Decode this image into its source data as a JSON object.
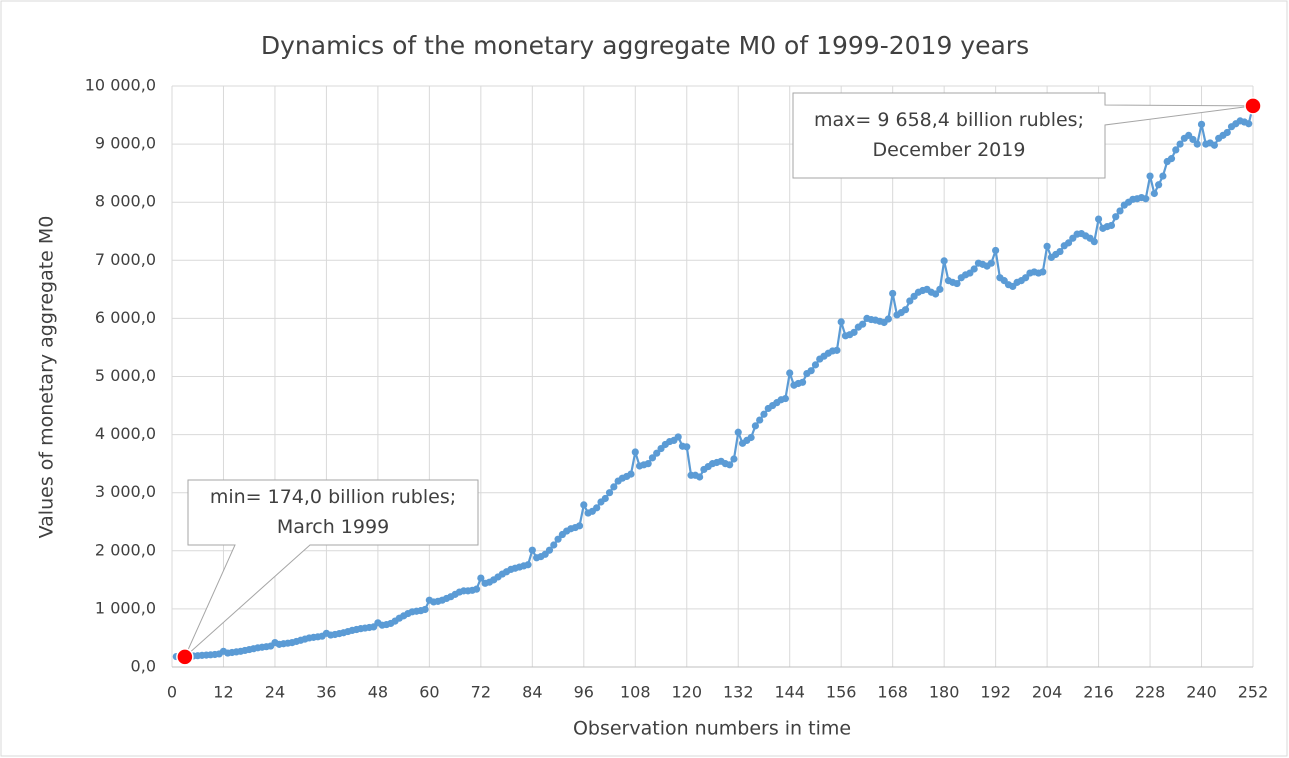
{
  "chart_data": {
    "type": "line",
    "title": "Dynamics of the monetary aggregate M0 of 1999-2019 years",
    "xlabel": "Observation numbers in time",
    "ylabel": "Values of monetary aggregate M0",
    "x": [
      1,
      2,
      3,
      4,
      5,
      6,
      7,
      8,
      9,
      10,
      11,
      12,
      13,
      14,
      15,
      16,
      17,
      18,
      19,
      20,
      21,
      22,
      23,
      24,
      25,
      26,
      27,
      28,
      29,
      30,
      31,
      32,
      33,
      34,
      35,
      36,
      37,
      38,
      39,
      40,
      41,
      42,
      43,
      44,
      45,
      46,
      47,
      48,
      49,
      50,
      51,
      52,
      53,
      54,
      55,
      56,
      57,
      58,
      59,
      60,
      61,
      62,
      63,
      64,
      65,
      66,
      67,
      68,
      69,
      70,
      71,
      72,
      73,
      74,
      75,
      76,
      77,
      78,
      79,
      80,
      81,
      82,
      83,
      84,
      85,
      86,
      87,
      88,
      89,
      90,
      91,
      92,
      93,
      94,
      95,
      96,
      97,
      98,
      99,
      100,
      101,
      102,
      103,
      104,
      105,
      106,
      107,
      108,
      109,
      110,
      111,
      112,
      113,
      114,
      115,
      116,
      117,
      118,
      119,
      120,
      121,
      122,
      123,
      124,
      125,
      126,
      127,
      128,
      129,
      130,
      131,
      132,
      133,
      134,
      135,
      136,
      137,
      138,
      139,
      140,
      141,
      142,
      143,
      144,
      145,
      146,
      147,
      148,
      149,
      150,
      151,
      152,
      153,
      154,
      155,
      156,
      157,
      158,
      159,
      160,
      161,
      162,
      163,
      164,
      165,
      166,
      167,
      168,
      169,
      170,
      171,
      172,
      173,
      174,
      175,
      176,
      177,
      178,
      179,
      180,
      181,
      182,
      183,
      184,
      185,
      186,
      187,
      188,
      189,
      190,
      191,
      192,
      193,
      194,
      195,
      196,
      197,
      198,
      199,
      200,
      201,
      202,
      203,
      204,
      205,
      206,
      207,
      208,
      209,
      210,
      211,
      212,
      213,
      214,
      215,
      216,
      217,
      218,
      219,
      220,
      221,
      222,
      223,
      224,
      225,
      226,
      227,
      228,
      229,
      230,
      231,
      232,
      233,
      234,
      235,
      236,
      237,
      238,
      239,
      240,
      241,
      242,
      243,
      244,
      245,
      246,
      247,
      248,
      249,
      250,
      251,
      252
    ],
    "series": [
      {
        "name": "M0",
        "color": "#5b9bd5",
        "values": [
          180,
          178,
          174,
          185,
          190,
          195,
          200,
          205,
          210,
          215,
          225,
          270,
          240,
          250,
          260,
          270,
          285,
          300,
          315,
          330,
          340,
          350,
          360,
          420,
          390,
          400,
          410,
          420,
          440,
          460,
          480,
          500,
          510,
          520,
          530,
          580,
          550,
          560,
          575,
          590,
          610,
          630,
          645,
          660,
          670,
          680,
          690,
          760,
          720,
          730,
          750,
          790,
          840,
          880,
          920,
          950,
          960,
          970,
          990,
          1150,
          1120,
          1130,
          1150,
          1180,
          1210,
          1250,
          1290,
          1310,
          1310,
          1320,
          1340,
          1530,
          1440,
          1460,
          1500,
          1550,
          1600,
          1640,
          1680,
          1700,
          1720,
          1740,
          1760,
          2010,
          1880,
          1900,
          1940,
          2010,
          2100,
          2200,
          2280,
          2340,
          2380,
          2400,
          2430,
          2790,
          2650,
          2680,
          2740,
          2840,
          2900,
          3000,
          3100,
          3200,
          3250,
          3280,
          3320,
          3700,
          3460,
          3480,
          3500,
          3600,
          3680,
          3760,
          3830,
          3880,
          3900,
          3960,
          3800,
          3790,
          3300,
          3300,
          3270,
          3400,
          3450,
          3500,
          3520,
          3540,
          3500,
          3480,
          3580,
          4040,
          3850,
          3900,
          3950,
          4150,
          4250,
          4350,
          4450,
          4500,
          4550,
          4600,
          4620,
          5060,
          4850,
          4880,
          4900,
          5050,
          5100,
          5200,
          5300,
          5350,
          5400,
          5440,
          5450,
          5940,
          5700,
          5720,
          5760,
          5850,
          5900,
          6000,
          5980,
          5970,
          5950,
          5930,
          5990,
          6430,
          6060,
          6100,
          6150,
          6300,
          6380,
          6450,
          6480,
          6500,
          6450,
          6420,
          6500,
          6990,
          6650,
          6620,
          6600,
          6700,
          6750,
          6780,
          6850,
          6950,
          6930,
          6900,
          6950,
          7170,
          6700,
          6650,
          6580,
          6550,
          6620,
          6650,
          6700,
          6780,
          6800,
          6780,
          6800,
          7240,
          7050,
          7100,
          7150,
          7250,
          7300,
          7380,
          7450,
          7460,
          7420,
          7380,
          7320,
          7710,
          7550,
          7580,
          7600,
          7750,
          7850,
          7950,
          8000,
          8050,
          8060,
          8080,
          8060,
          8450,
          8150,
          8300,
          8450,
          8700,
          8750,
          8900,
          9000,
          9100,
          9150,
          9080,
          9000,
          9340,
          9000,
          9020,
          8980,
          9100,
          9150,
          9200,
          9300,
          9350,
          9400,
          9380,
          9350,
          9658.4
        ]
      }
    ],
    "highlight_color": "#ff0000",
    "annotations": [
      {
        "lines": [
          "min=  174,0 billion rubles;",
          "March 1999"
        ]
      },
      {
        "lines": [
          "max= 9 658,4 billion rubles;",
          "December  2019"
        ]
      }
    ],
    "xlim": [
      0,
      252
    ],
    "xticks": [
      0,
      12,
      24,
      36,
      48,
      60,
      72,
      84,
      96,
      108,
      120,
      132,
      144,
      156,
      168,
      180,
      192,
      204,
      216,
      228,
      240,
      252
    ],
    "ylim": [
      0,
      10000
    ],
    "yticks": [
      {
        "value": 0,
        "label": "0,0"
      },
      {
        "value": 1000,
        "label": "1 000,0"
      },
      {
        "value": 2000,
        "label": "2 000,0"
      },
      {
        "value": 3000,
        "label": "3 000,0"
      },
      {
        "value": 4000,
        "label": "4 000,0"
      },
      {
        "value": 5000,
        "label": "5 000,0"
      },
      {
        "value": 6000,
        "label": "6 000,0"
      },
      {
        "value": 7000,
        "label": "7 000,0"
      },
      {
        "value": 8000,
        "label": "8 000,0"
      },
      {
        "value": 9000,
        "label": "9 000,0"
      },
      {
        "value": 10000,
        "label": "10 000,0"
      }
    ],
    "grid": true
  }
}
